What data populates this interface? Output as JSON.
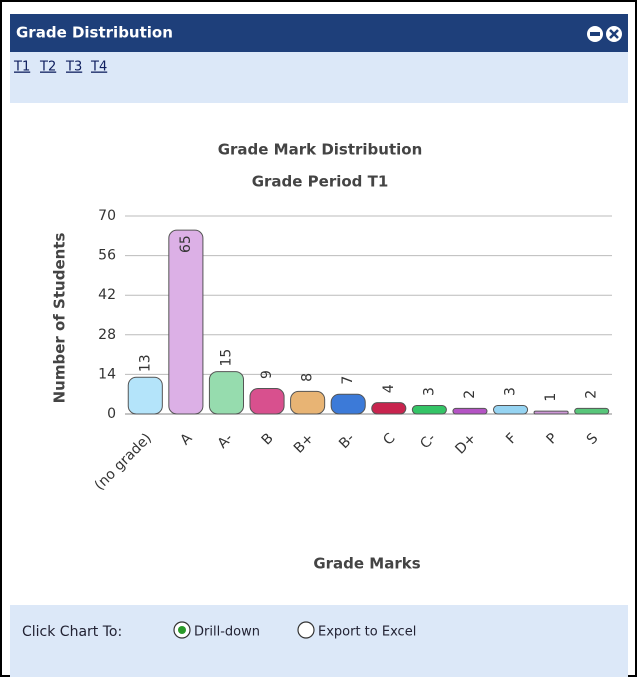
{
  "panel": {
    "title": "Grade Distribution",
    "tabs": [
      "T1",
      "T2",
      "T3",
      "T4"
    ]
  },
  "chart_data": {
    "type": "bar",
    "title": "Grade Mark Distribution",
    "subtitle": "Grade Period T1",
    "y_label": "Number of Students",
    "x_label": "Grade Marks",
    "categories": [
      "(no grade)",
      "A",
      "A-",
      "B",
      "B+",
      "B-",
      "C",
      "C-",
      "D+",
      "F",
      "P",
      "S"
    ],
    "values": [
      13,
      65,
      15,
      9,
      8,
      7,
      4,
      3,
      2,
      3,
      1,
      2
    ],
    "colors": [
      "#b4e4fa",
      "#dcb0e6",
      "#96dcae",
      "#d8508e",
      "#e8b474",
      "#3c7ad8",
      "#c8244e",
      "#34c466",
      "#b454c4",
      "#96d4f2",
      "#cc96d6",
      "#58c67a"
    ],
    "ylim": [
      0,
      70
    ],
    "yticks": [
      0,
      14,
      28,
      42,
      56,
      70
    ],
    "grid": true
  },
  "footer": {
    "label": "Click Chart To:",
    "options": [
      "Drill-down",
      "Export to Excel"
    ],
    "selected": 0
  }
}
